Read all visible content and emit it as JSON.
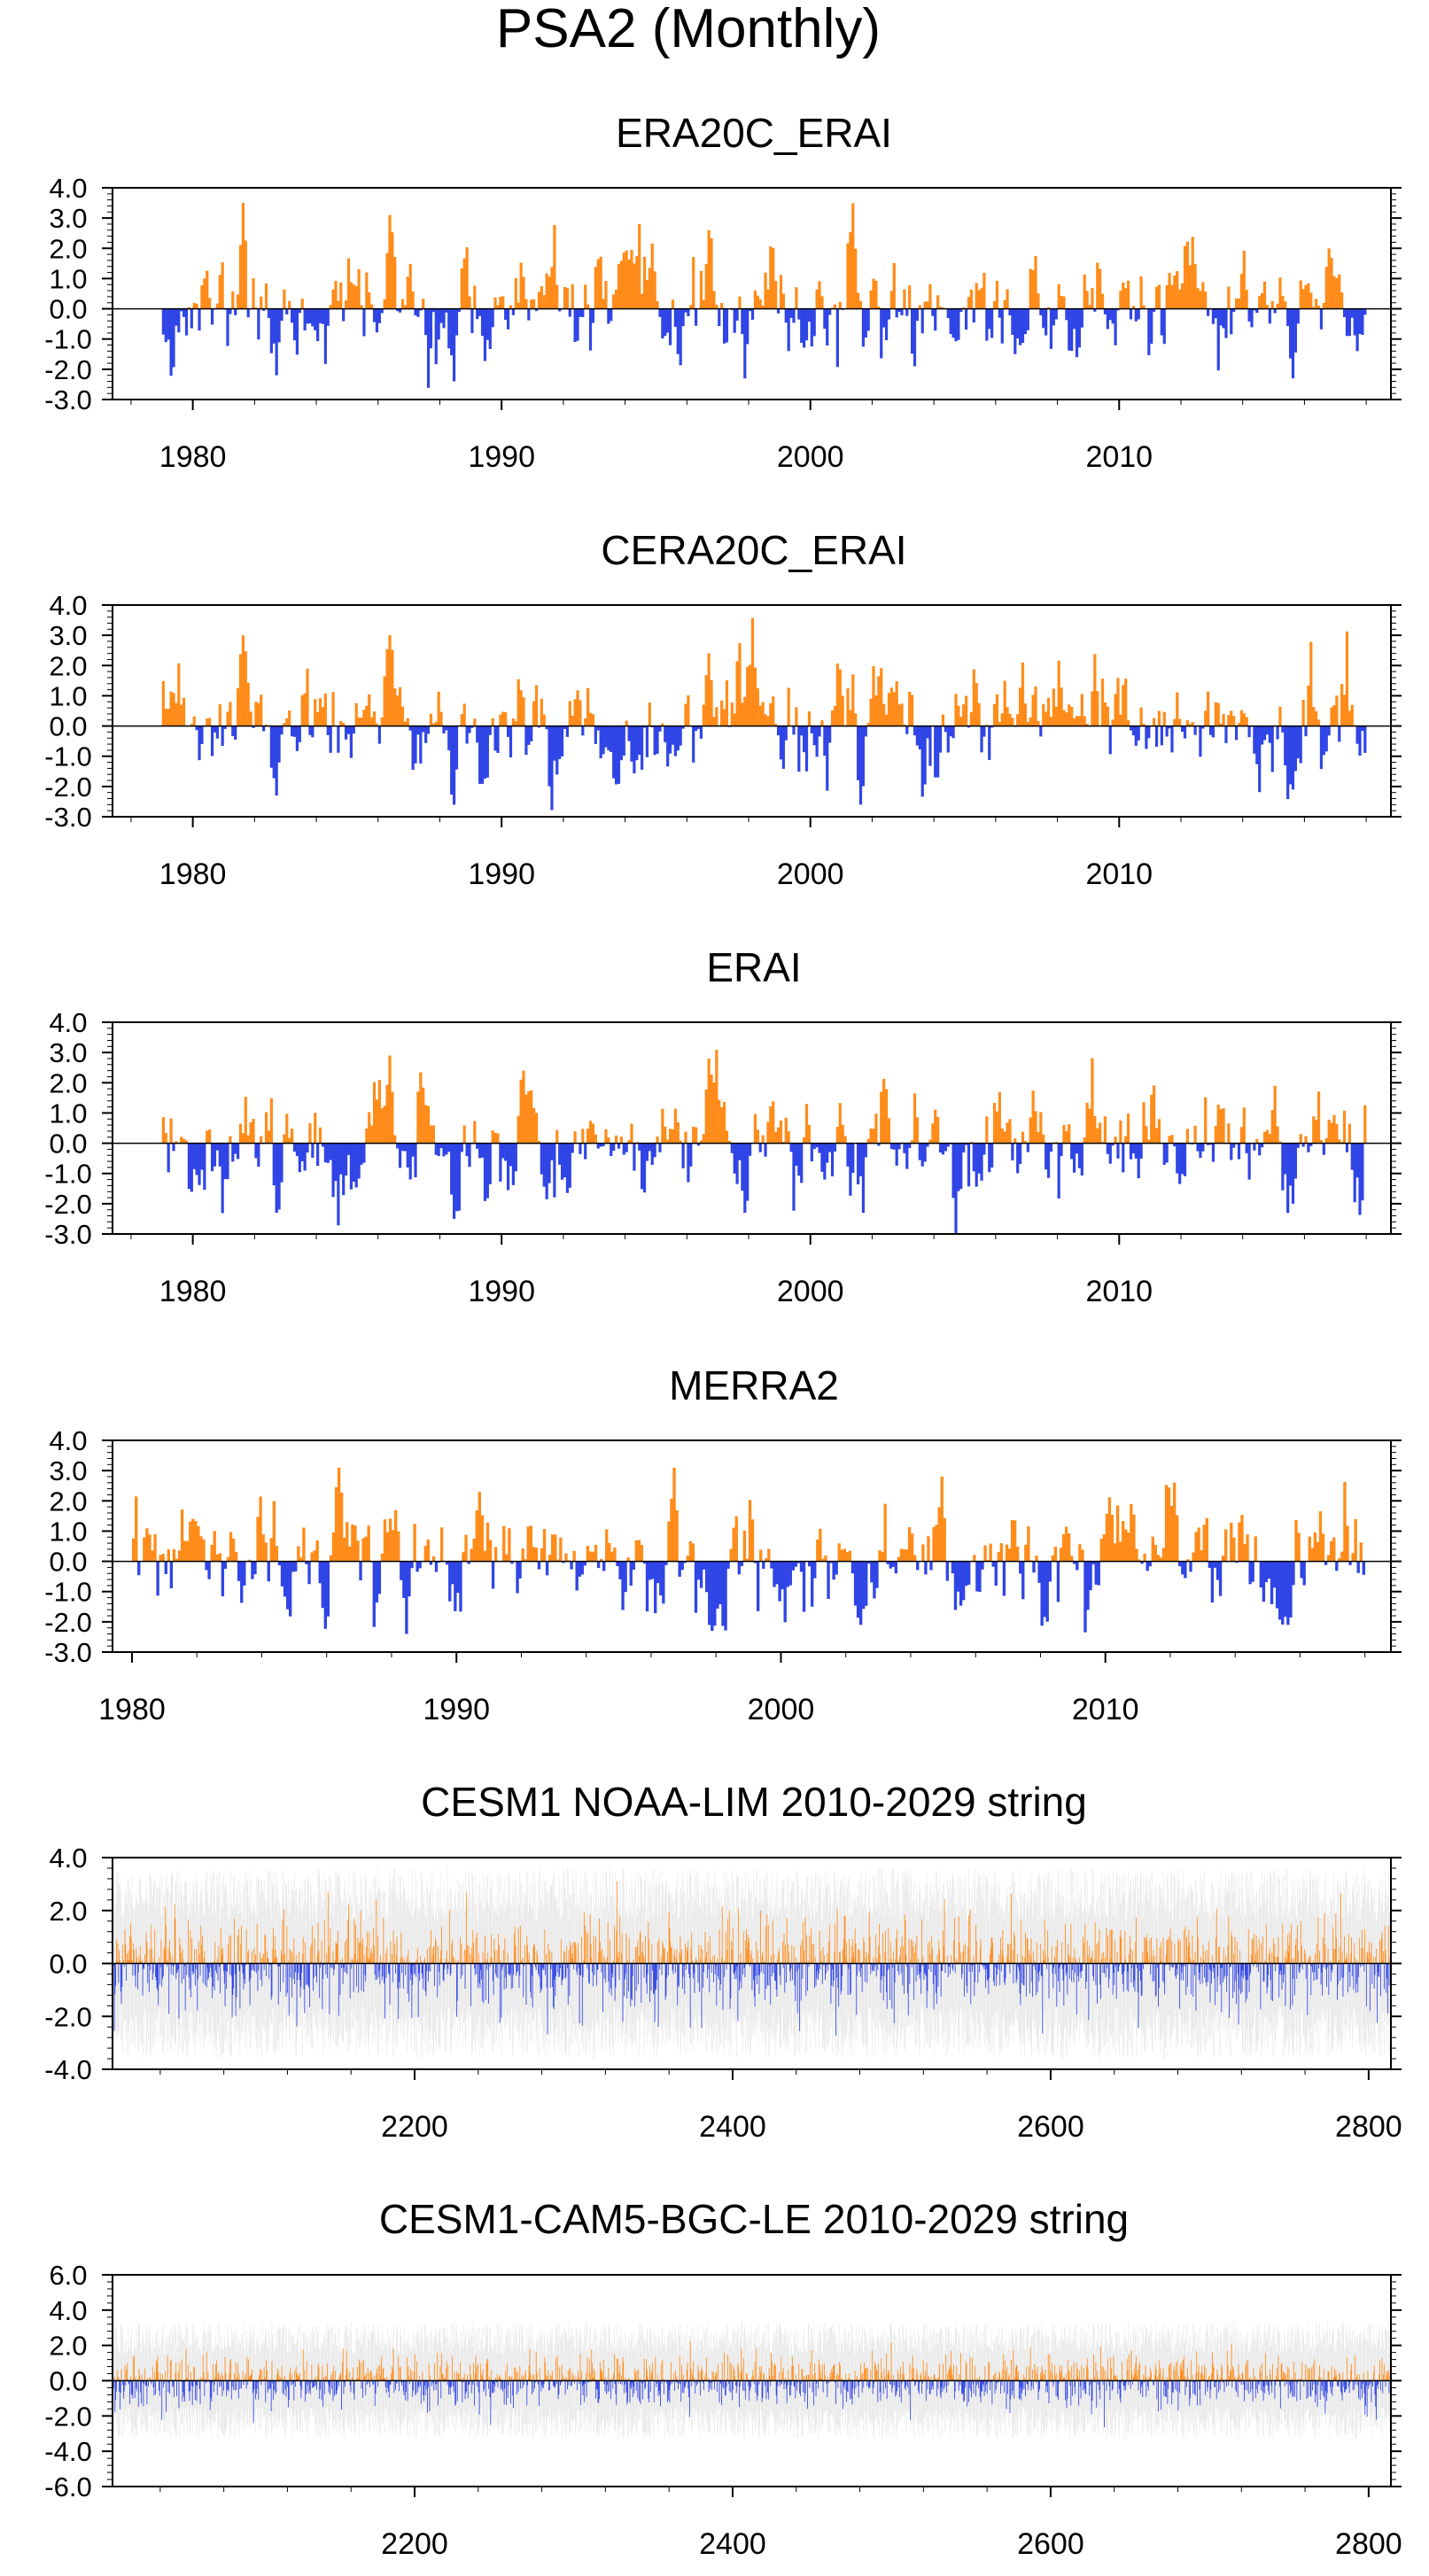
{
  "figure": {
    "title": "PSA2 (Monthly)"
  },
  "colors": {
    "positive": "#ff8c1a",
    "negative": "#3045e6",
    "envelope": "#c8c8c8",
    "axis": "#000000"
  },
  "chart_data": [
    {
      "type": "area",
      "title": "ERA20C_ERAI",
      "mode": "monthly",
      "xlim": [
        1977.4,
        2018.8
      ],
      "ylim": [
        -3.0,
        4.0
      ],
      "yticks": [
        "4.0",
        "3.0",
        "2.0",
        "1.0",
        "0.0",
        "-1.0",
        "-2.0",
        "-3.0"
      ],
      "ytick_values": [
        4,
        3,
        2,
        1,
        0,
        -1,
        -2,
        -3
      ],
      "xticks": [
        "1980",
        "1990",
        "2000",
        "2010"
      ],
      "xtick_values": [
        1980,
        1990,
        2000,
        2010
      ],
      "start": 1979.0,
      "end": 2018.0,
      "seed": 11,
      "peaks": [
        [
          1981.6,
          3.5
        ],
        [
          1986.3,
          3.1
        ],
        [
          1996.7,
          2.6
        ],
        [
          1988.4,
          -2.4
        ],
        [
          1982.7,
          -2.2
        ],
        [
          1997.8,
          -2.3
        ],
        [
          2015.6,
          -2.3
        ],
        [
          2006.6,
          -1.5
        ]
      ]
    },
    {
      "type": "area",
      "title": "CERA20C_ERAI",
      "mode": "monthly",
      "xlim": [
        1977.4,
        2018.8
      ],
      "ylim": [
        -3.0,
        4.0
      ],
      "yticks": [
        "4.0",
        "3.0",
        "2.0",
        "1.0",
        "0.0",
        "-1.0",
        "-2.0",
        "-3.0"
      ],
      "ytick_values": [
        4,
        3,
        2,
        1,
        0,
        -1,
        -2,
        -3
      ],
      "xticks": [
        "1980",
        "1990",
        "2000",
        "2010"
      ],
      "xtick_values": [
        1980,
        1990,
        2000,
        2010
      ],
      "start": 1979.0,
      "end": 2018.0,
      "seed": 23,
      "peaks": [
        [
          1981.6,
          3.0
        ],
        [
          1986.3,
          3.0
        ],
        [
          1996.7,
          2.4
        ],
        [
          1988.4,
          -2.6
        ],
        [
          1982.7,
          -2.3
        ],
        [
          2001.6,
          -2.6
        ],
        [
          2015.6,
          -2.1
        ]
      ]
    },
    {
      "type": "area",
      "title": "ERAI",
      "mode": "monthly",
      "xlim": [
        1977.4,
        2018.8
      ],
      "ylim": [
        -3.0,
        4.0
      ],
      "yticks": [
        "4.0",
        "3.0",
        "2.0",
        "1.0",
        "0.0",
        "-1.0",
        "-2.0",
        "-3.0"
      ],
      "ytick_values": [
        4,
        3,
        2,
        1,
        0,
        -1,
        -2,
        -3
      ],
      "xticks": [
        "1980",
        "1990",
        "2000",
        "2010"
      ],
      "xtick_values": [
        1980,
        1990,
        2000,
        2010
      ],
      "start": 1979.0,
      "end": 2018.0,
      "seed": 37,
      "peaks": [
        [
          1986.3,
          2.9
        ],
        [
          1996.7,
          2.8
        ],
        [
          1990.7,
          2.4
        ],
        [
          1988.4,
          -2.5
        ],
        [
          1982.7,
          -2.3
        ],
        [
          1997.8,
          -2.3
        ],
        [
          2015.6,
          -2.0
        ]
      ]
    },
    {
      "type": "area",
      "title": "MERRA2",
      "mode": "monthly",
      "xlim": [
        1979.4,
        2018.8
      ],
      "ylim": [
        -3.0,
        4.0
      ],
      "yticks": [
        "4.0",
        "3.0",
        "2.0",
        "1.0",
        "0.0",
        "-1.0",
        "-2.0",
        "-3.0"
      ],
      "ytick_values": [
        4,
        3,
        2,
        1,
        0,
        -1,
        -2,
        -3
      ],
      "xticks": [
        "1980",
        "1990",
        "2000",
        "2010"
      ],
      "xtick_values": [
        1980,
        1990,
        2000,
        2010
      ],
      "start": 1980.0,
      "end": 2018.0,
      "seed": 53,
      "peaks": [
        [
          1986.3,
          3.1
        ],
        [
          1996.7,
          3.1
        ],
        [
          1990.7,
          2.3
        ],
        [
          1988.4,
          -2.4
        ],
        [
          1997.8,
          -2.3
        ],
        [
          2015.6,
          -2.1
        ],
        [
          2002.4,
          -2.1
        ]
      ]
    },
    {
      "type": "bar",
      "title": "CESM1 NOAA-LIM 2010-2029 string",
      "mode": "dense",
      "xlim": [
        2010,
        2814
      ],
      "ylim": [
        -4.0,
        4.0
      ],
      "yticks": [
        "4.0",
        "2.0",
        "0.0",
        "-2.0",
        "-4.0"
      ],
      "ytick_values": [
        4,
        2,
        0,
        -2,
        -4
      ],
      "xticks": [
        "2200",
        "2400",
        "2600",
        "2800"
      ],
      "xtick_values": [
        2200,
        2400,
        2600,
        2800
      ],
      "start": 2010.0,
      "end": 2814.0,
      "seed": 71,
      "amplitude": 0.85,
      "envelope": 3.6
    },
    {
      "type": "bar",
      "title": "CESM1-CAM5-BGC-LE 2010-2029 string",
      "mode": "dense",
      "xlim": [
        2010,
        2814
      ],
      "ylim": [
        -6.0,
        6.0
      ],
      "yticks": [
        "6.0",
        "4.0",
        "2.0",
        "0.0",
        "-2.0",
        "-4.0",
        "-6.0"
      ],
      "ytick_values": [
        6,
        4,
        2,
        0,
        -2,
        -4,
        -6
      ],
      "xticks": [
        "2200",
        "2400",
        "2600",
        "2800"
      ],
      "xtick_values": [
        2200,
        2400,
        2600,
        2800
      ],
      "start": 2010.0,
      "end": 2814.0,
      "seed": 89,
      "amplitude": 0.75,
      "envelope": 3.3
    }
  ]
}
